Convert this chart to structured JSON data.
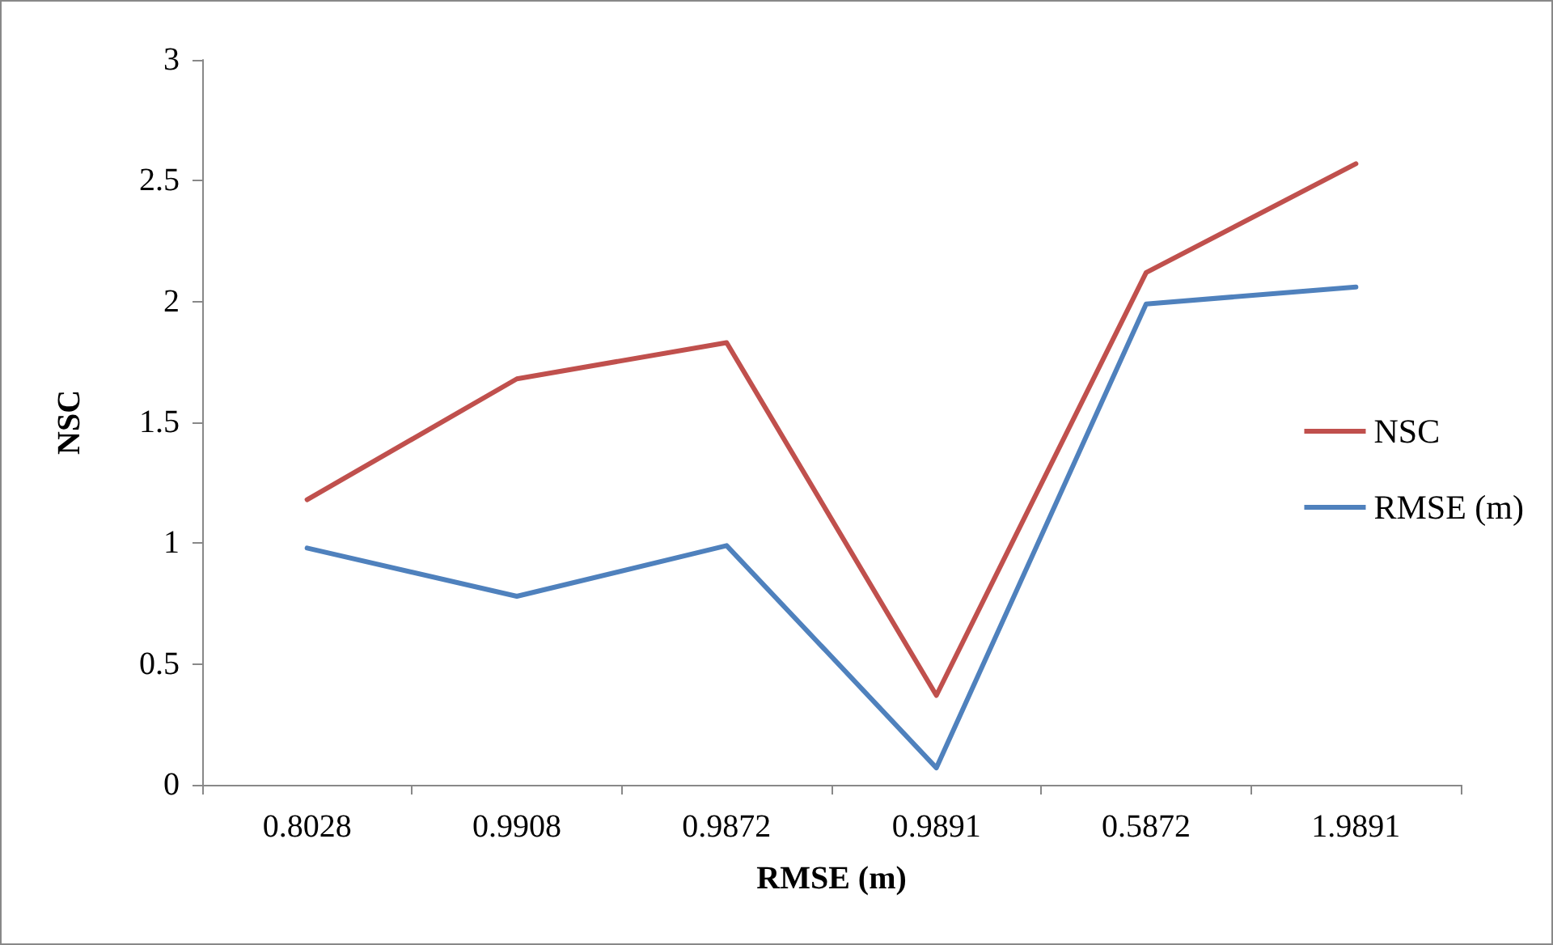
{
  "chart_data": {
    "type": "line",
    "xlabel": "RMSE (m)",
    "ylabel": "NSC",
    "categories": [
      "0.8028",
      "0.9908",
      "0.9872",
      "0.9891",
      "0.5872",
      "1.9891"
    ],
    "series": [
      {
        "name": "NSC",
        "color": "#c0504d",
        "values": [
          1.18,
          1.68,
          1.83,
          0.37,
          2.12,
          2.57
        ]
      },
      {
        "name": "RMSE (m)",
        "color": "#4f81bd",
        "values": [
          0.98,
          0.78,
          0.99,
          0.07,
          1.99,
          2.06
        ]
      }
    ],
    "ylim": [
      0,
      3
    ],
    "yticks": [
      0,
      0.5,
      1,
      1.5,
      2,
      2.5,
      3
    ],
    "grid": false,
    "legend": "right",
    "marker": "none",
    "line_style": "solid"
  }
}
